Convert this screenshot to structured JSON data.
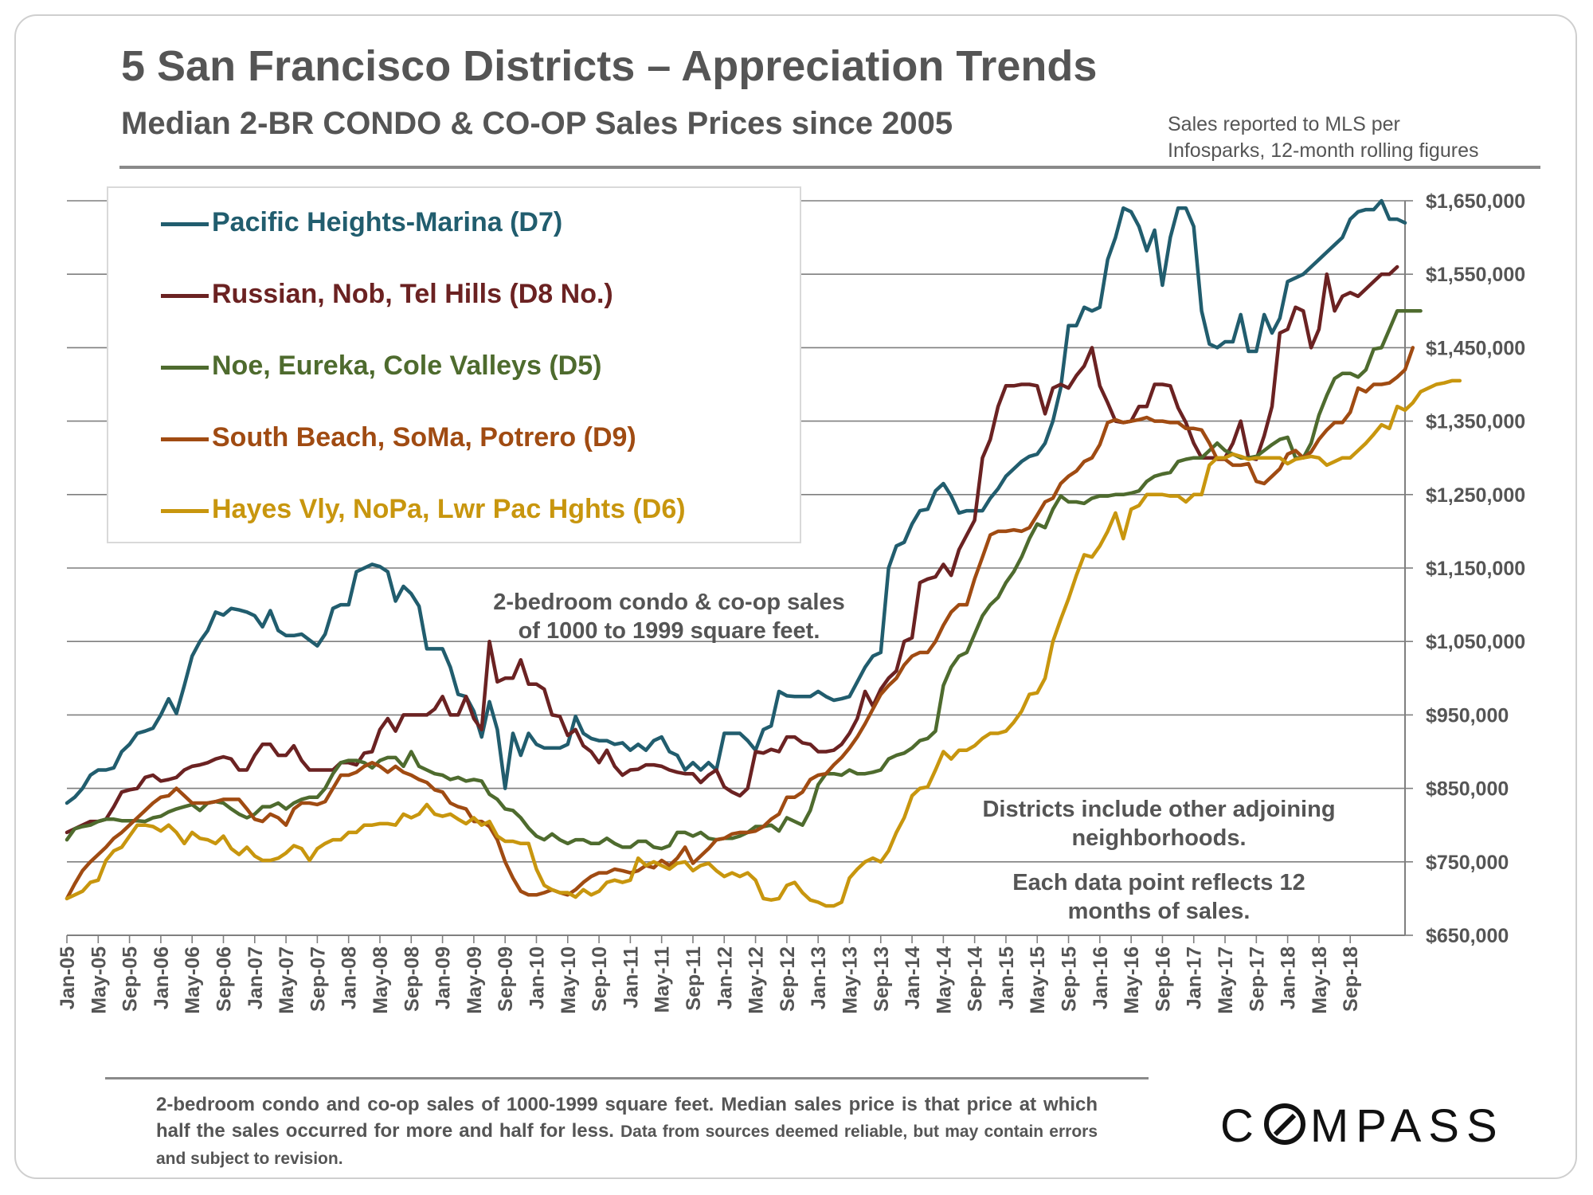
{
  "header": {
    "title": "5 San Francisco Districts – Appreciation Trends",
    "subtitle": "Median 2-BR CONDO & CO-OP Sales Prices since 2005",
    "source_line1": "Sales reported to MLS per",
    "source_line2": "Infosparks, 12-month rolling figures"
  },
  "notes": {
    "sqft_line1": "2-bedroom condo & co-op sales",
    "sqft_line2": "of 1000 to 1999 square feet.",
    "districts_line1": "Districts include other adjoining",
    "districts_line2": "neighborhoods.",
    "datapoint_line1": "Each data point reflects 12",
    "datapoint_line2": "months of sales."
  },
  "footer": {
    "main": "2-bedroom condo and co-op sales of 1000-1999 square feet. Median sales price is that price at which half the sales occurred for more and half for less.",
    "small": "Data from sources deemed reliable, but may contain errors and subject to revision."
  },
  "logo": {
    "text_left": "C",
    "text_right": "MPASS"
  },
  "chart_data": {
    "type": "line",
    "title": "5 San Francisco Districts – Appreciation Trends",
    "subtitle": "Median 2-BR CONDO & CO-OP Sales Prices since 2005",
    "xlabel": "",
    "ylabel": "",
    "ylim": [
      650000,
      1650000
    ],
    "y_ticks": [
      650000,
      750000,
      850000,
      950000,
      1050000,
      1150000,
      1250000,
      1350000,
      1450000,
      1550000,
      1650000
    ],
    "y_tick_labels": [
      "$650,000",
      "$750,000",
      "$850,000",
      "$950,000",
      "$1,050,000",
      "$1,150,000",
      "$1,250,000",
      "$1,350,000",
      "$1,450,000",
      "$1,550,000",
      "$1,650,000"
    ],
    "x_start": "Jan-05",
    "x_end": "Nov-18",
    "x_tick_labels": [
      "Jan-05",
      "May-05",
      "Sep-05",
      "Jan-06",
      "May-06",
      "Sep-06",
      "Jan-07",
      "May-07",
      "Sep-07",
      "Jan-08",
      "May-08",
      "Sep-08",
      "Jan-09",
      "May-09",
      "Sep-09",
      "Jan-10",
      "May-10",
      "Sep-10",
      "Jan-11",
      "May-11",
      "Sep-11",
      "Jan-12",
      "May-12",
      "Sep-12",
      "Jan-13",
      "May-13",
      "Sep-13",
      "Jan-14",
      "May-14",
      "Sep-14",
      "Jan-15",
      "May-15",
      "Sep-15",
      "Jan-16",
      "May-16",
      "Sep-16",
      "Jan-17",
      "May-17",
      "Sep-17",
      "Jan-18",
      "May-18",
      "Sep-18"
    ],
    "grid": true,
    "legend_position": "top-left",
    "series": [
      {
        "name": "Pacific Heights-Marina (D7)",
        "color": "#215d6e",
        "values": [
          830000,
          838000,
          850000,
          868000,
          875000,
          875000,
          878000,
          900000,
          910000,
          925000,
          928000,
          932000,
          950000,
          972000,
          952000,
          990000,
          1030000,
          1050000,
          1065000,
          1090000,
          1086000,
          1095000,
          1093000,
          1090000,
          1085000,
          1070000,
          1092000,
          1065000,
          1058000,
          1058000,
          1060000,
          1052000,
          1044000,
          1060000,
          1095000,
          1100000,
          1100000,
          1145000,
          1150000,
          1155000,
          1152000,
          1145000,
          1105000,
          1125000,
          1115000,
          1098000,
          1040000,
          1040000,
          1040000,
          1015000,
          978000,
          975000,
          955000,
          920000,
          968000,
          930000,
          850000,
          925000,
          895000,
          925000,
          910000,
          905000,
          905000,
          905000,
          910000,
          948000,
          925000,
          918000,
          915000,
          915000,
          910000,
          912000,
          902000,
          910000,
          902000,
          915000,
          920000,
          900000,
          895000,
          875000,
          885000,
          875000,
          885000,
          875000,
          925000,
          925000,
          925000,
          915000,
          902000,
          930000,
          935000,
          982000,
          976000,
          975000,
          975000,
          975000,
          982000,
          975000,
          970000,
          972000,
          975000,
          995000,
          1015000,
          1030000,
          1035000,
          1150000,
          1180000,
          1185000,
          1210000,
          1228000,
          1230000,
          1255000,
          1265000,
          1248000,
          1225000,
          1228000,
          1228000,
          1228000,
          1245000,
          1258000,
          1275000,
          1285000,
          1295000,
          1302000,
          1305000,
          1320000,
          1350000,
          1395000,
          1480000,
          1480000,
          1505000,
          1500000,
          1505000,
          1570000,
          1600000,
          1640000,
          1635000,
          1615000,
          1582000,
          1610000,
          1535000,
          1600000,
          1640000,
          1640000,
          1615000,
          1500000,
          1455000,
          1450000,
          1458000,
          1458000,
          1495000,
          1445000,
          1445000,
          1495000,
          1470000,
          1490000,
          1540000,
          1545000,
          1550000,
          1560000,
          1570000,
          1580000,
          1590000,
          1600000,
          1625000,
          1635000,
          1638000,
          1638000,
          1650000,
          1625000,
          1625000,
          1620000
        ]
      },
      {
        "name": "Russian, Nob, Tel Hills (D8 No.)",
        "color": "#6b2222",
        "values": [
          790000,
          795000,
          800000,
          805000,
          805000,
          808000,
          825000,
          845000,
          848000,
          850000,
          865000,
          868000,
          860000,
          862000,
          865000,
          875000,
          880000,
          882000,
          885000,
          890000,
          893000,
          890000,
          875000,
          875000,
          895000,
          910000,
          910000,
          895000,
          895000,
          908000,
          888000,
          875000,
          875000,
          875000,
          875000,
          885000,
          885000,
          882000,
          898000,
          900000,
          930000,
          945000,
          928000,
          950000,
          950000,
          950000,
          950000,
          958000,
          975000,
          950000,
          950000,
          975000,
          945000,
          930000,
          1050000,
          995000,
          1000000,
          1000000,
          1025000,
          992000,
          992000,
          985000,
          950000,
          948000,
          922000,
          930000,
          908000,
          900000,
          885000,
          902000,
          880000,
          868000,
          875000,
          876000,
          882000,
          882000,
          880000,
          875000,
          872000,
          870000,
          870000,
          858000,
          868000,
          875000,
          852000,
          845000,
          840000,
          850000,
          900000,
          898000,
          903000,
          900000,
          920000,
          920000,
          912000,
          910000,
          900000,
          900000,
          902000,
          910000,
          925000,
          945000,
          982000,
          962000,
          985000,
          1000000,
          1010000,
          1050000,
          1055000,
          1130000,
          1135000,
          1138000,
          1155000,
          1140000,
          1175000,
          1195000,
          1215000,
          1300000,
          1325000,
          1370000,
          1398000,
          1398000,
          1400000,
          1400000,
          1398000,
          1360000,
          1395000,
          1400000,
          1395000,
          1412000,
          1425000,
          1450000,
          1398000,
          1375000,
          1350000,
          1348000,
          1350000,
          1370000,
          1370000,
          1400000,
          1400000,
          1398000,
          1368000,
          1348000,
          1320000,
          1300000,
          1300000,
          1300000,
          1300000,
          1320000,
          1350000,
          1300000,
          1298000,
          1330000,
          1370000,
          1470000,
          1475000,
          1505000,
          1500000,
          1450000,
          1475000,
          1550000,
          1500000,
          1520000,
          1525000,
          1520000,
          1530000,
          1540000,
          1550000,
          1550000,
          1560000
        ]
      },
      {
        "name": "Noe, Eureka, Cole Valleys (D5)",
        "color": "#4e6b2e",
        "values": [
          780000,
          795000,
          798000,
          800000,
          805000,
          808000,
          808000,
          806000,
          806000,
          806000,
          805000,
          810000,
          812000,
          818000,
          822000,
          825000,
          828000,
          820000,
          830000,
          832000,
          830000,
          822000,
          815000,
          810000,
          815000,
          825000,
          825000,
          830000,
          822000,
          830000,
          835000,
          838000,
          838000,
          850000,
          870000,
          885000,
          888000,
          888000,
          885000,
          878000,
          888000,
          892000,
          892000,
          880000,
          900000,
          880000,
          875000,
          870000,
          868000,
          862000,
          865000,
          860000,
          862000,
          860000,
          842000,
          835000,
          822000,
          820000,
          810000,
          796000,
          785000,
          780000,
          788000,
          780000,
          775000,
          780000,
          780000,
          775000,
          775000,
          782000,
          775000,
          770000,
          770000,
          778000,
          778000,
          770000,
          768000,
          772000,
          790000,
          790000,
          785000,
          790000,
          782000,
          780000,
          782000,
          782000,
          785000,
          790000,
          798000,
          798000,
          800000,
          792000,
          810000,
          805000,
          800000,
          820000,
          855000,
          870000,
          870000,
          868000,
          875000,
          870000,
          870000,
          872000,
          875000,
          890000,
          895000,
          898000,
          905000,
          915000,
          918000,
          928000,
          990000,
          1015000,
          1030000,
          1035000,
          1060000,
          1085000,
          1100000,
          1110000,
          1130000,
          1145000,
          1165000,
          1190000,
          1210000,
          1205000,
          1230000,
          1248000,
          1240000,
          1240000,
          1238000,
          1245000,
          1248000,
          1248000,
          1250000,
          1250000,
          1252000,
          1255000,
          1268000,
          1275000,
          1278000,
          1280000,
          1295000,
          1298000,
          1300000,
          1300000,
          1310000,
          1320000,
          1310000,
          1305000,
          1300000,
          1300000,
          1302000,
          1310000,
          1318000,
          1325000,
          1328000,
          1300000,
          1300000,
          1320000,
          1358000,
          1385000,
          1408000,
          1415000,
          1415000,
          1410000,
          1420000,
          1448000,
          1450000,
          1475000,
          1500000,
          1500000,
          1500000,
          1500000
        ]
      },
      {
        "name": "South Beach, SoMa, Potrero (D9)",
        "color": "#a04b12",
        "values": [
          700000,
          720000,
          738000,
          750000,
          760000,
          770000,
          782000,
          790000,
          800000,
          810000,
          820000,
          830000,
          838000,
          840000,
          850000,
          840000,
          830000,
          830000,
          830000,
          832000,
          835000,
          835000,
          835000,
          822000,
          808000,
          805000,
          815000,
          810000,
          800000,
          822000,
          830000,
          830000,
          828000,
          832000,
          850000,
          868000,
          868000,
          872000,
          880000,
          885000,
          880000,
          872000,
          880000,
          872000,
          868000,
          862000,
          858000,
          848000,
          845000,
          830000,
          825000,
          822000,
          805000,
          805000,
          798000,
          780000,
          750000,
          728000,
          710000,
          705000,
          705000,
          708000,
          712000,
          708000,
          705000,
          712000,
          722000,
          730000,
          735000,
          735000,
          740000,
          738000,
          735000,
          738000,
          745000,
          742000,
          752000,
          745000,
          755000,
          770000,
          748000,
          758000,
          768000,
          780000,
          782000,
          788000,
          790000,
          790000,
          792000,
          798000,
          808000,
          815000,
          838000,
          838000,
          845000,
          862000,
          868000,
          870000,
          882000,
          892000,
          905000,
          920000,
          938000,
          958000,
          978000,
          990000,
          1000000,
          1018000,
          1030000,
          1035000,
          1035000,
          1050000,
          1072000,
          1090000,
          1100000,
          1100000,
          1135000,
          1165000,
          1195000,
          1200000,
          1200000,
          1202000,
          1200000,
          1205000,
          1222000,
          1240000,
          1245000,
          1265000,
          1275000,
          1282000,
          1295000,
          1300000,
          1318000,
          1348000,
          1352000,
          1348000,
          1350000,
          1352000,
          1355000,
          1350000,
          1350000,
          1348000,
          1348000,
          1340000,
          1340000,
          1338000,
          1320000,
          1298000,
          1298000,
          1290000,
          1290000,
          1292000,
          1268000,
          1265000,
          1275000,
          1285000,
          1305000,
          1310000,
          1300000,
          1308000,
          1325000,
          1338000,
          1348000,
          1348000,
          1362000,
          1395000,
          1390000,
          1400000,
          1400000,
          1402000,
          1410000,
          1420000,
          1450000
        ]
      },
      {
        "name": "Hayes Vly, NoPa, Lwr Pac Hghts (D6)",
        "color": "#c8960e",
        "values": [
          700000,
          705000,
          710000,
          722000,
          725000,
          752000,
          765000,
          770000,
          785000,
          800000,
          800000,
          798000,
          792000,
          800000,
          790000,
          775000,
          790000,
          782000,
          780000,
          775000,
          785000,
          768000,
          760000,
          770000,
          758000,
          752000,
          752000,
          755000,
          762000,
          772000,
          768000,
          752000,
          768000,
          775000,
          780000,
          780000,
          790000,
          790000,
          800000,
          800000,
          802000,
          802000,
          800000,
          815000,
          810000,
          815000,
          828000,
          815000,
          812000,
          815000,
          808000,
          802000,
          810000,
          800000,
          805000,
          785000,
          778000,
          778000,
          775000,
          775000,
          740000,
          718000,
          712000,
          708000,
          708000,
          702000,
          712000,
          705000,
          710000,
          722000,
          725000,
          722000,
          725000,
          755000,
          745000,
          750000,
          745000,
          740000,
          748000,
          750000,
          738000,
          745000,
          748000,
          738000,
          730000,
          735000,
          730000,
          735000,
          725000,
          700000,
          698000,
          700000,
          718000,
          722000,
          708000,
          698000,
          695000,
          690000,
          690000,
          695000,
          728000,
          740000,
          750000,
          755000,
          750000,
          765000,
          790000,
          810000,
          840000,
          850000,
          852000,
          875000,
          900000,
          890000,
          902000,
          902000,
          908000,
          918000,
          925000,
          925000,
          928000,
          940000,
          955000,
          978000,
          980000,
          1000000,
          1050000,
          1080000,
          1108000,
          1140000,
          1168000,
          1165000,
          1180000,
          1200000,
          1225000,
          1190000,
          1230000,
          1235000,
          1250000,
          1250000,
          1250000,
          1248000,
          1248000,
          1240000,
          1250000,
          1250000,
          1290000,
          1300000,
          1300000,
          1305000,
          1302000,
          1298000,
          1300000,
          1300000,
          1300000,
          1300000,
          1292000,
          1298000,
          1300000,
          1302000,
          1300000,
          1290000,
          1295000,
          1300000,
          1300000,
          1310000,
          1320000,
          1332000,
          1345000,
          1340000,
          1370000,
          1365000,
          1375000,
          1390000,
          1395000,
          1400000,
          1402000,
          1405000,
          1405000
        ]
      }
    ]
  }
}
